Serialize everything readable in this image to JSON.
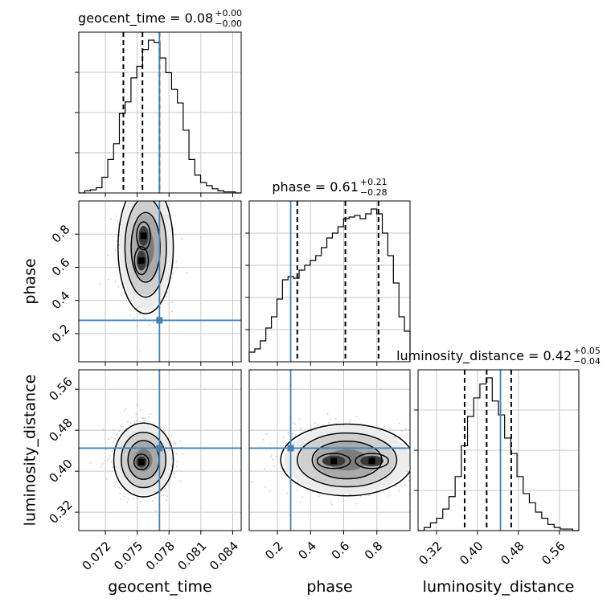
{
  "chart_data": {
    "type": "corner",
    "parameters": [
      "geocent_time",
      "phase",
      "luminosity_distance"
    ],
    "colors": {
      "truth": "#4682b4",
      "hist": "#000000",
      "grid": "#c8c8c8",
      "contour": "#000000",
      "scatter": "#9a9a9a"
    },
    "grid": true,
    "panel_titles": [
      {
        "text": "geocent_time = 0.08",
        "sup": "+0.00",
        "sub": "−0.00"
      },
      {
        "text": "phase = 0.61",
        "sup": "+0.21",
        "sub": "−0.28"
      },
      {
        "text": "luminosity_distance = 0.42",
        "sup": "+0.05",
        "sub": "−0.04"
      }
    ],
    "axis_labels": {
      "x": [
        "geocent_time",
        "phase",
        "luminosity_distance"
      ],
      "y": [
        "phase",
        "luminosity_distance"
      ]
    },
    "ranges": {
      "geocent_time": [
        0.0695,
        0.0848
      ],
      "phase": [
        0.03,
        1.0
      ],
      "luminosity_distance": [
        0.284,
        0.598
      ]
    },
    "ticks": {
      "geocent_time": [
        "0.072",
        "0.075",
        "0.078",
        "0.081",
        "0.084"
      ],
      "phase_x": [
        "0.2",
        "0.4",
        "0.6",
        "0.8"
      ],
      "phase_y": [
        "0.2",
        "0.4",
        "0.6",
        "0.8"
      ],
      "luminosity_distance": [
        "0.32",
        "0.40",
        "0.48",
        "0.56"
      ]
    },
    "truths": {
      "geocent_time": 0.0771,
      "phase": 0.28,
      "luminosity_distance": 0.445
    },
    "quantiles": {
      "geocent_time": [
        0.0737,
        0.0755,
        0.0771
      ],
      "phase": [
        0.32,
        0.61,
        0.81
      ],
      "luminosity_distance": [
        0.375,
        0.418,
        0.466
      ]
    },
    "histograms": {
      "geocent_time": {
        "bins": [
          0.0695,
          0.0848
        ],
        "counts": [
          0,
          2,
          3,
          5,
          15,
          32,
          47,
          76,
          87,
          110,
          121,
          137,
          146,
          144,
          129,
          115,
          99,
          86,
          60,
          32,
          17,
          10,
          7,
          4,
          2,
          1,
          1,
          0
        ]
      },
      "phase": {
        "bins": [
          0.03,
          1.0
        ],
        "counts": [
          6,
          8,
          13,
          21,
          28,
          39,
          51,
          53,
          52,
          57,
          60,
          63,
          66,
          71,
          77,
          80,
          84,
          89,
          90,
          91,
          89,
          92,
          95,
          92,
          80,
          66,
          49,
          28,
          19
        ]
      },
      "luminosity_distance": {
        "bins": [
          0.284,
          0.598
        ],
        "counts": [
          0,
          2,
          5,
          8,
          14,
          22,
          35,
          55,
          74,
          86,
          95,
          99,
          84,
          75,
          60,
          50,
          35,
          24,
          18,
          12,
          8,
          4,
          2,
          1,
          1,
          0
        ]
      }
    },
    "pair_density": {
      "phase_vs_geocent_time": {
        "center": [
          0.0758,
          0.72
        ],
        "spread": [
          0.0013,
          0.2
        ],
        "modes": [
          [
            0.0756,
            0.79
          ],
          [
            0.0754,
            0.64
          ]
        ]
      },
      "luminosity_distance_vs_geocent_time": {
        "center": [
          0.0756,
          0.422
        ],
        "spread": [
          0.0014,
          0.036
        ],
        "modes": [
          [
            0.0754,
            0.418
          ]
        ]
      },
      "luminosity_distance_vs_phase": {
        "center": [
          0.62,
          0.422
        ],
        "spread": [
          0.2,
          0.035
        ],
        "modes": [
          [
            0.54,
            0.42
          ],
          [
            0.77,
            0.42
          ]
        ]
      }
    }
  }
}
